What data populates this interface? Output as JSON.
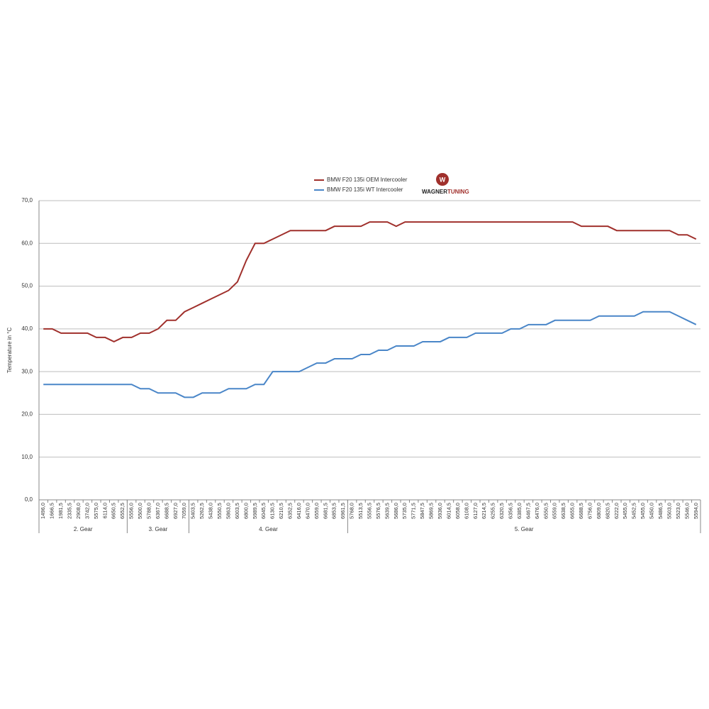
{
  "chart_data": {
    "type": "line",
    "y_label": "Temperature in °C",
    "logo": {
      "part1": "WAGNER",
      "part2": "TUNING"
    },
    "categories": [
      "1496,0",
      "1666,5",
      "1981,5",
      "2335,5",
      "2908,0",
      "3742,0",
      "5575,0",
      "6114,0",
      "6650,5",
      "6552,5",
      "5556,0",
      "5500,0",
      "5788,0",
      "6367,0",
      "6688,5",
      "6927,0",
      "7059,0",
      "5403,5",
      "5262,5",
      "5438,0",
      "5550,5",
      "5863,0",
      "6003,5",
      "6800,0",
      "5989,5",
      "6045,5",
      "6130,5",
      "6210,5",
      "6352,5",
      "6416,0",
      "6470,0",
      "6559,0",
      "6681,5",
      "6853,5",
      "6961,5",
      "5768,0",
      "5513,5",
      "5556,5",
      "5576,5",
      "5639,5",
      "5686,0",
      "5735,0",
      "5771,5",
      "5847,5",
      "5869,5",
      "5936,0",
      "6014,5",
      "6058,0",
      "6108,0",
      "6127,0",
      "6214,5",
      "6255,5",
      "6320,5",
      "6356,5",
      "6385,0",
      "6467,5",
      "6476,0",
      "6550,5",
      "6559,0",
      "6638,5",
      "6655,0",
      "6688,5",
      "6756,0",
      "6809,0",
      "6820,5",
      "6222,0",
      "5455,0",
      "5452,5",
      "5455,0",
      "5450,0",
      "5486,5",
      "5503,0",
      "5523,0",
      "5546,0",
      "5594,0"
    ],
    "gear_groups": [
      {
        "name": "2. Gear",
        "span": 10
      },
      {
        "name": "3. Gear",
        "span": 7
      },
      {
        "name": "4. Gear",
        "span": 18
      },
      {
        "name": "5. Gear",
        "span": 40
      }
    ],
    "series": [
      {
        "name": "BMW F20 135i OEM Intercooler",
        "color": "#a0302c",
        "values": [
          40,
          40,
          39,
          39,
          39,
          39,
          38,
          38,
          37,
          38,
          38,
          39,
          39,
          40,
          42,
          42,
          44,
          45,
          46,
          47,
          48,
          49,
          51,
          56,
          60,
          60,
          61,
          62,
          63,
          63,
          63,
          63,
          63,
          64,
          64,
          64,
          64,
          65,
          65,
          65,
          64,
          65,
          65,
          65,
          65,
          65,
          65,
          65,
          65,
          65,
          65,
          65,
          65,
          65,
          65,
          65,
          65,
          65,
          65,
          65,
          65,
          64,
          64,
          64,
          64,
          63,
          63,
          63,
          63,
          63,
          63,
          63,
          62,
          62,
          61
        ]
      },
      {
        "name": "BMW F20 135i WT Intercooler",
        "color": "#4a86c8",
        "values": [
          27,
          27,
          27,
          27,
          27,
          27,
          27,
          27,
          27,
          27,
          27,
          26,
          26,
          25,
          25,
          25,
          24,
          24,
          25,
          25,
          25,
          26,
          26,
          26,
          27,
          27,
          30,
          30,
          30,
          30,
          31,
          32,
          32,
          33,
          33,
          33,
          34,
          34,
          35,
          35,
          36,
          36,
          36,
          37,
          37,
          37,
          38,
          38,
          38,
          39,
          39,
          39,
          39,
          40,
          40,
          41,
          41,
          41,
          42,
          42,
          42,
          42,
          42,
          43,
          43,
          43,
          43,
          43,
          44,
          44,
          44,
          44,
          43,
          42,
          41
        ]
      }
    ],
    "ylim": [
      0,
      70
    ],
    "yticks": [
      {
        "value": 0,
        "label": "0,0"
      },
      {
        "value": 10,
        "label": "10,0"
      },
      {
        "value": 20,
        "label": "20,0"
      },
      {
        "value": 30,
        "label": "30,0"
      },
      {
        "value": 40,
        "label": "40,0"
      },
      {
        "value": 50,
        "label": "50,0"
      },
      {
        "value": 60,
        "label": "60,0"
      },
      {
        "value": 70,
        "label": "70,0"
      }
    ],
    "grid": true
  }
}
